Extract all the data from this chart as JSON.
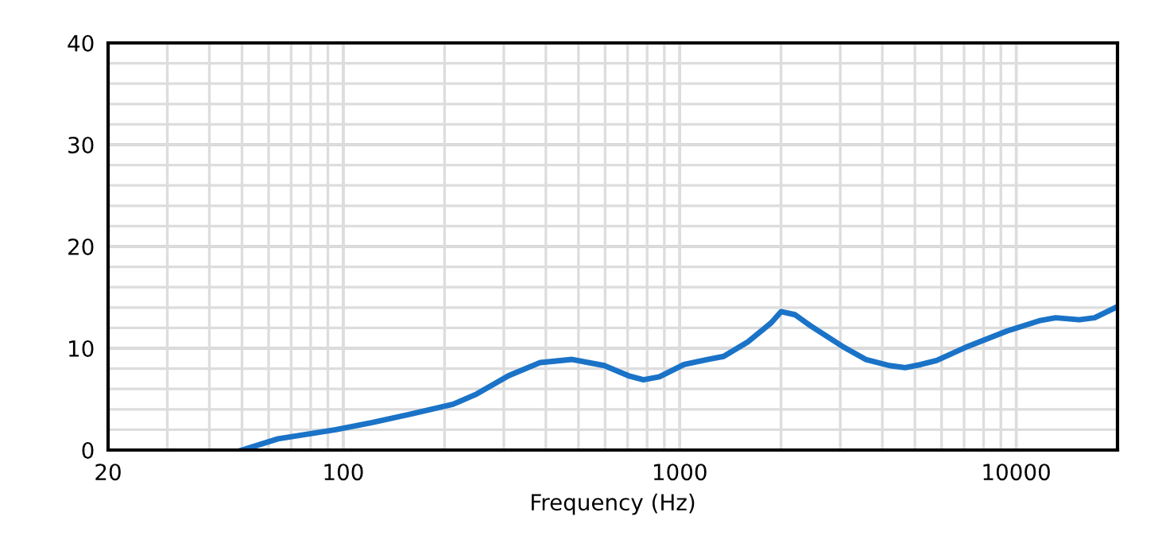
{
  "chart_data": {
    "type": "line",
    "xlabel": "Frequency (Hz)",
    "log": "x",
    "grid": true,
    "marker": "none",
    "line_style": "solid",
    "xlim": [
      20,
      20000
    ],
    "ylim": [
      0,
      40
    ],
    "xticks": [
      20,
      {
        "value": 30,
        "label": null
      },
      {
        "value": 40,
        "label": null
      },
      {
        "value": 50,
        "label": null
      },
      {
        "value": 60,
        "label": null
      },
      {
        "value": 70,
        "label": null
      },
      {
        "value": 80,
        "label": null
      },
      {
        "value": 90,
        "label": null
      },
      100,
      {
        "value": 200,
        "label": null
      },
      {
        "value": 300,
        "label": null
      },
      {
        "value": 400,
        "label": null
      },
      {
        "value": 500,
        "label": null
      },
      {
        "value": 600,
        "label": null
      },
      {
        "value": 700,
        "label": null
      },
      {
        "value": 800,
        "label": null
      },
      {
        "value": 900,
        "label": null
      },
      1000,
      {
        "value": 2000,
        "label": null
      },
      {
        "value": 3000,
        "label": null
      },
      {
        "value": 4000,
        "label": null
      },
      {
        "value": 5000,
        "label": null
      },
      {
        "value": 6000,
        "label": null
      },
      {
        "value": 7000,
        "label": null
      },
      {
        "value": 8000,
        "label": null
      },
      {
        "value": 9000,
        "label": null
      },
      10000,
      {
        "value": 20000,
        "label": null
      }
    ],
    "yticks": [
      0,
      {
        "value": 2,
        "label": null
      },
      {
        "value": 4,
        "label": null
      },
      {
        "value": 6,
        "label": null
      },
      {
        "value": 8,
        "label": null
      },
      10,
      {
        "value": 12,
        "label": null
      },
      {
        "value": 14,
        "label": null
      },
      {
        "value": 16,
        "label": null
      },
      {
        "value": 18,
        "label": null
      },
      20,
      {
        "value": 22,
        "label": null
      },
      {
        "value": 24,
        "label": null
      },
      {
        "value": 26,
        "label": null
      },
      {
        "value": 28,
        "label": null
      },
      30,
      {
        "value": 32,
        "label": null
      },
      {
        "value": 34,
        "label": null
      },
      {
        "value": 36,
        "label": null
      },
      {
        "value": 38,
        "label": null
      },
      40
    ],
    "series": [
      {
        "color": "#1a73c7",
        "x": [
          50,
          64,
          95,
          122,
          162,
          212,
          249,
          310,
          385,
          479,
          597,
          704,
          780,
          870,
          1030,
          1210,
          1350,
          1590,
          1870,
          2000,
          2200,
          2450,
          3040,
          3570,
          4200,
          4680,
          5200,
          5800,
          7200,
          9400,
          11700,
          13100,
          15400,
          17100,
          20000
        ],
        "values": [
          0,
          1.1,
          2.0,
          2.7,
          3.6,
          4.5,
          5.5,
          7.3,
          8.6,
          8.9,
          8.3,
          7.3,
          6.9,
          7.2,
          8.4,
          8.9,
          9.2,
          10.6,
          12.5,
          13.6,
          13.3,
          12.2,
          10.2,
          8.9,
          8.3,
          8.1,
          8.4,
          8.8,
          10.2,
          11.7,
          12.7,
          13.0,
          12.8,
          13.0,
          14.1
        ]
      }
    ]
  }
}
